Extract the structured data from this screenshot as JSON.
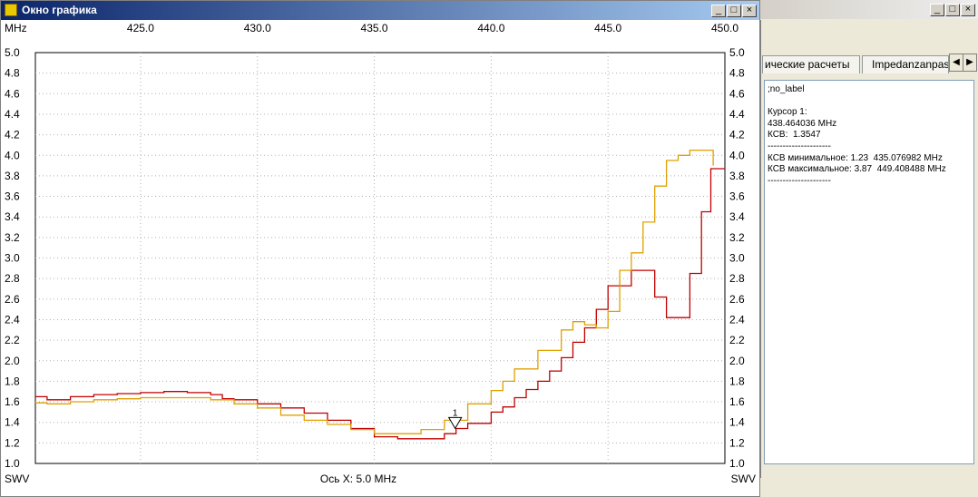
{
  "graph_window": {
    "title": "Окно графика",
    "buttons": {
      "minimize": "_",
      "maximize": "□",
      "close": "×"
    }
  },
  "side_window": {
    "buttons": {
      "minimize": "_",
      "maximize": "□",
      "close": "×"
    },
    "tabs": [
      "ические расчеты",
      "Impedanzanpas"
    ],
    "info_lines": [
      ";no_label",
      "",
      "Курсор 1:",
      "438.464036 MHz",
      "КСВ:  1.3547",
      "---------------------",
      "КСВ минимальное: 1.23  435.076982 MHz",
      "КСВ максимальное: 3.87  449.408488 MHz",
      "---------------------"
    ]
  },
  "chart_data": {
    "type": "line",
    "x_unit_label": "MHz",
    "y_label_left": "SWV",
    "y_label_right": "SWV",
    "x_axis_caption": "Ось X: 5.0 MHz",
    "xlim": [
      420.5,
      450.0
    ],
    "ylim": [
      1.0,
      5.0
    ],
    "x_ticks": [
      425.0,
      430.0,
      435.0,
      440.0,
      445.0,
      450.0
    ],
    "x_tick_labels": [
      "425.0",
      "430.0",
      "435.0",
      "440.0",
      "445.0",
      "450.0"
    ],
    "y_ticks": [
      1.0,
      1.2,
      1.4,
      1.6,
      1.8,
      2.0,
      2.2,
      2.4,
      2.6,
      2.8,
      3.0,
      3.2,
      3.4,
      3.6,
      3.8,
      4.0,
      4.2,
      4.4,
      4.6,
      4.8,
      5.0
    ],
    "y_tick_labels": [
      "1.0",
      "1.2",
      "1.4",
      "1.6",
      "1.8",
      "2.0",
      "2.2",
      "2.4",
      "2.6",
      "2.8",
      "3.0",
      "3.2",
      "3.4",
      "3.6",
      "3.8",
      "4.0",
      "4.2",
      "4.4",
      "4.6",
      "4.8",
      "5.0"
    ],
    "grid": true,
    "cursor": {
      "label": "1",
      "x": 438.46,
      "y": 1.35
    },
    "colors": {
      "series_red": "#c00000",
      "series_orange": "#e0a000",
      "grid": "#b0b0b0",
      "cursor": "#000000"
    },
    "series": [
      {
        "color": "#c00000",
        "x": [
          420.5,
          421.0,
          422.0,
          423.0,
          424.0,
          425.0,
          426.0,
          427.0,
          428.0,
          428.5,
          429.0,
          430.0,
          431.0,
          432.0,
          433.0,
          434.0,
          435.0,
          436.0,
          437.0,
          438.0,
          438.5,
          439.0,
          440.0,
          440.5,
          441.0,
          441.5,
          442.0,
          442.5,
          443.0,
          443.5,
          444.0,
          444.5,
          445.0,
          446.0,
          446.5,
          447.0,
          447.5,
          448.0,
          448.5,
          449.0,
          449.4,
          450.0
        ],
        "y": [
          1.65,
          1.62,
          1.65,
          1.67,
          1.68,
          1.69,
          1.7,
          1.69,
          1.67,
          1.63,
          1.62,
          1.58,
          1.54,
          1.49,
          1.42,
          1.34,
          1.26,
          1.24,
          1.24,
          1.29,
          1.34,
          1.39,
          1.5,
          1.55,
          1.64,
          1.72,
          1.8,
          1.9,
          2.03,
          2.18,
          2.32,
          2.5,
          2.73,
          2.88,
          2.88,
          2.62,
          2.42,
          2.42,
          2.85,
          3.45,
          3.87,
          3.87
        ]
      },
      {
        "color": "#e0a000",
        "x": [
          420.5,
          421.0,
          422.0,
          423.0,
          424.0,
          425.0,
          426.0,
          427.0,
          428.0,
          429.0,
          430.0,
          431.0,
          432.0,
          433.0,
          434.0,
          435.0,
          436.0,
          437.0,
          438.0,
          439.0,
          440.0,
          440.5,
          441.0,
          442.0,
          443.0,
          443.5,
          444.0,
          444.5,
          445.0,
          445.5,
          446.0,
          446.5,
          447.0,
          447.5,
          448.0,
          448.5,
          449.0,
          449.3,
          449.5
        ],
        "y": [
          1.59,
          1.58,
          1.6,
          1.62,
          1.63,
          1.64,
          1.64,
          1.64,
          1.62,
          1.58,
          1.54,
          1.47,
          1.42,
          1.38,
          1.33,
          1.29,
          1.29,
          1.33,
          1.42,
          1.58,
          1.71,
          1.8,
          1.92,
          2.1,
          2.3,
          2.38,
          2.35,
          2.32,
          2.48,
          2.88,
          3.05,
          3.35,
          3.7,
          3.95,
          4.0,
          4.05,
          4.05,
          4.05,
          3.9
        ]
      }
    ]
  }
}
